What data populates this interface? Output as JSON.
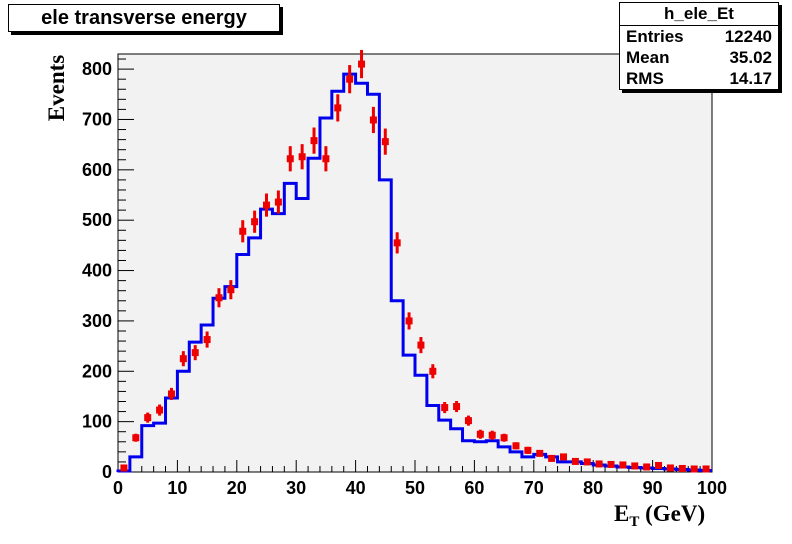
{
  "chart_data": {
    "type": "histogram",
    "title": "ele transverse energy",
    "xlabel_main": "E",
    "xlabel_sub": "T",
    "xlabel_unit": " (GeV)",
    "ylabel": "Events",
    "xlim": [
      0,
      100
    ],
    "ylim": [
      0,
      830
    ],
    "xticks": [
      0,
      10,
      20,
      30,
      40,
      50,
      60,
      70,
      80,
      90,
      100
    ],
    "yticks": [
      0,
      100,
      200,
      300,
      400,
      500,
      600,
      700,
      800
    ],
    "grid": false,
    "bin_width": 2,
    "colors": {
      "histogram": "#0000ee",
      "data": "#ee0000",
      "frame_bg": "#f2f2f2"
    },
    "histogram": {
      "bin_edges_start": 0,
      "values": [
        2,
        30,
        92,
        97,
        147,
        200,
        258,
        292,
        345,
        368,
        432,
        465,
        522,
        513,
        573,
        543,
        623,
        703,
        756,
        790,
        772,
        750,
        580,
        340,
        232,
        192,
        132,
        103,
        86,
        62,
        60,
        62,
        50,
        40,
        30,
        35,
        30,
        20,
        20,
        17,
        14,
        12,
        10,
        9,
        8,
        7,
        6,
        5,
        4,
        3
      ]
    },
    "data_points": {
      "x": [
        1,
        3,
        5,
        7,
        9,
        11,
        13,
        15,
        17,
        19,
        21,
        23,
        25,
        27,
        29,
        31,
        33,
        35,
        37,
        39,
        41,
        43,
        45,
        47,
        49,
        51,
        53,
        55,
        57,
        59,
        61,
        63,
        65,
        67,
        69,
        71,
        73,
        75,
        77,
        79,
        81,
        83,
        85,
        87,
        89,
        91,
        93,
        95,
        97,
        99
      ],
      "y": [
        8,
        68,
        108,
        123,
        155,
        225,
        237,
        263,
        346,
        362,
        478,
        497,
        530,
        536,
        622,
        626,
        658,
        622,
        723,
        780,
        810,
        699,
        656,
        455,
        300,
        252,
        200,
        128,
        130,
        102,
        75,
        73,
        68,
        52,
        43,
        37,
        27,
        30,
        21,
        20,
        16,
        15,
        14,
        12,
        10,
        13,
        8,
        7,
        6,
        6
      ],
      "err": [
        3,
        8,
        10,
        11,
        12,
        15,
        15,
        16,
        19,
        19,
        22,
        22,
        23,
        23,
        25,
        25,
        26,
        25,
        27,
        28,
        28,
        26,
        26,
        21,
        17,
        16,
        14,
        11,
        11,
        10,
        9,
        9,
        8,
        7,
        7,
        6,
        5,
        5,
        5,
        4,
        4,
        4,
        4,
        3,
        3,
        4,
        3,
        3,
        2,
        2
      ]
    }
  },
  "stats": {
    "name": "h_ele_Et",
    "rows": [
      {
        "label": "Entries",
        "value": "12240"
      },
      {
        "label": "Mean",
        "value": "35.02"
      },
      {
        "label": "RMS",
        "value": "14.17"
      }
    ]
  }
}
